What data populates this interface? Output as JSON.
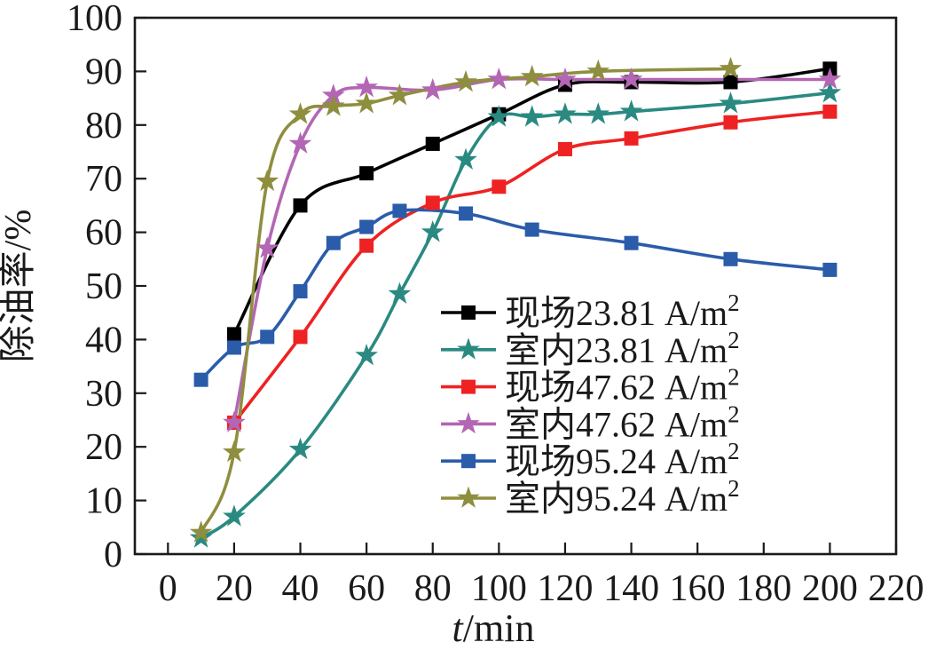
{
  "figure": {
    "background": "#ffffff"
  },
  "chart_data": {
    "type": "line",
    "title": "",
    "xlabel": "t/min",
    "xlabel_italic": "t",
    "xlabel_unit": "/min",
    "ylabel": "除油率/%",
    "xlim": [
      -10,
      220
    ],
    "ylim": [
      0,
      100
    ],
    "x_ticks": [
      0,
      20,
      40,
      60,
      80,
      100,
      120,
      140,
      160,
      180,
      200,
      220
    ],
    "y_ticks": [
      0,
      10,
      20,
      30,
      40,
      50,
      60,
      70,
      80,
      90,
      100
    ],
    "grid": false,
    "legend_position": "inside-center-right",
    "frame": "full-box",
    "series": [
      {
        "label": "现场23.81 A/m²",
        "label_base": "现场23.81 A/m",
        "label_sup": "2",
        "color": "#000000",
        "marker": "square",
        "x": [
          20,
          40,
          60,
          80,
          100,
          120,
          140,
          170,
          200
        ],
        "y": [
          41,
          65,
          71,
          76.5,
          82,
          87.5,
          88,
          88,
          90.5
        ]
      },
      {
        "label": "室内23.81 A/m²",
        "label_base": "室内23.81 A/m",
        "label_sup": "2",
        "color": "#2a8a82",
        "marker": "star",
        "x": [
          10,
          20,
          40,
          60,
          70,
          80,
          90,
          100,
          110,
          120,
          130,
          140,
          170,
          200
        ],
        "y": [
          3,
          7,
          19.5,
          37,
          48.5,
          60,
          73.5,
          81.5,
          81.5,
          82,
          82,
          82.5,
          84,
          86
        ]
      },
      {
        "label": "现场47.62 A/m²",
        "label_base": "现场47.62 A/m",
        "label_sup": "2",
        "color": "#ee2222",
        "marker": "square",
        "x": [
          20,
          40,
          60,
          80,
          100,
          120,
          140,
          170,
          200
        ],
        "y": [
          24.5,
          40.5,
          57.5,
          65.5,
          68.5,
          75.5,
          77.5,
          80.5,
          82.5
        ]
      },
      {
        "label": "室内47.62 A/m²",
        "label_base": "室内47.62 A/m",
        "label_sup": "2",
        "color": "#b366b3",
        "marker": "star",
        "x": [
          20,
          30,
          40,
          50,
          60,
          80,
          100,
          120,
          140,
          200
        ],
        "y": [
          24.5,
          57,
          76.5,
          85.5,
          87,
          86.5,
          88.5,
          88.5,
          88.5,
          88.5
        ]
      },
      {
        "label": "现场95.24 A/m²",
        "label_base": "现场95.24 A/m",
        "label_sup": "2",
        "color": "#2a5caa",
        "marker": "square",
        "x": [
          10,
          20,
          30,
          40,
          50,
          60,
          70,
          90,
          110,
          140,
          170,
          200
        ],
        "y": [
          32.5,
          38.5,
          40.5,
          49,
          58,
          61,
          64,
          63.5,
          60.5,
          58,
          55,
          53
        ]
      },
      {
        "label": "室内95.24 A/m²",
        "label_base": "室内95.24 A/m",
        "label_sup": "2",
        "color": "#8e8e3f",
        "marker": "star",
        "x": [
          10,
          20,
          30,
          40,
          50,
          60,
          70,
          90,
          110,
          130,
          170
        ],
        "y": [
          4,
          19,
          69.5,
          82,
          83.5,
          84,
          85.5,
          88,
          89,
          90,
          90.5
        ]
      }
    ]
  }
}
